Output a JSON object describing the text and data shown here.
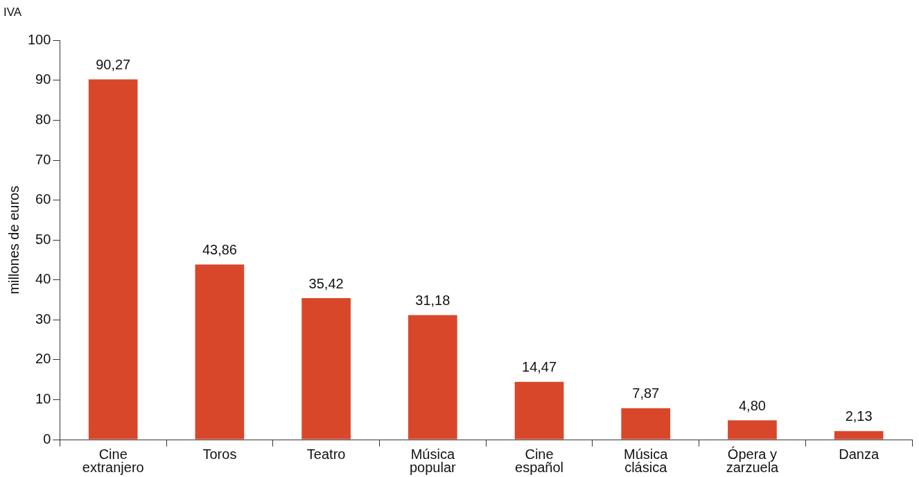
{
  "chart_data": {
    "type": "bar",
    "title": "IVA",
    "ylabel": "millones de euros",
    "categories": [
      "Cine extranjero",
      "Toros",
      "Teatro",
      "Música popular",
      "Cine español",
      "Música clásica",
      "Ópera y zarzuela",
      "Danza"
    ],
    "values": [
      90.27,
      43.86,
      35.42,
      31.18,
      14.47,
      7.87,
      4.8,
      2.13
    ],
    "value_labels": [
      "90,27",
      "43,86",
      "35,42",
      "31,18",
      "14,47",
      "7,87",
      "4,80",
      "2,13"
    ],
    "color": "#d9472b",
    "ylim": [
      0,
      100
    ],
    "yticks": [
      0,
      10,
      20,
      30,
      40,
      50,
      60,
      70,
      80,
      90,
      100
    ],
    "grid": false,
    "legend": false
  }
}
